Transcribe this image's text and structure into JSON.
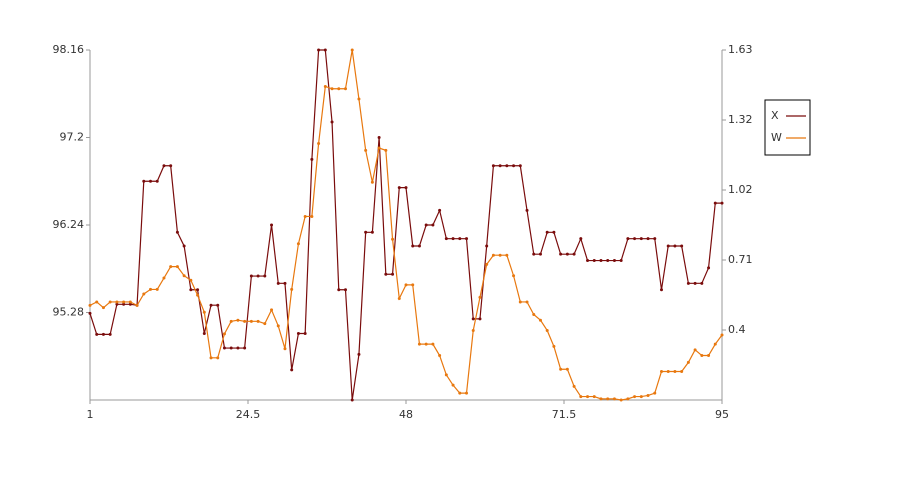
{
  "chart_data": {
    "type": "line",
    "x": [
      1,
      2,
      3,
      4,
      5,
      6,
      7,
      8,
      9,
      10,
      11,
      12,
      13,
      14,
      15,
      16,
      17,
      18,
      19,
      20,
      21,
      22,
      23,
      24,
      25,
      26,
      27,
      28,
      29,
      30,
      31,
      32,
      33,
      34,
      35,
      36,
      37,
      38,
      39,
      40,
      41,
      42,
      43,
      44,
      45,
      46,
      47,
      48,
      49,
      50,
      51,
      52,
      53,
      54,
      55,
      56,
      57,
      58,
      59,
      60,
      61,
      62,
      63,
      64,
      65,
      66,
      67,
      68,
      69,
      70,
      71,
      72,
      73,
      74,
      75,
      76,
      77,
      78,
      79,
      80,
      81,
      82,
      83,
      84,
      85,
      86,
      87,
      88,
      89,
      90,
      91,
      92,
      93,
      94,
      95
    ],
    "xlim": [
      1,
      95
    ],
    "xticks": [
      1,
      24.5,
      48,
      71.5,
      95
    ],
    "ylim": [
      94.32,
      98.16
    ],
    "yticks": [
      95.28,
      96.24,
      97.2,
      98.16
    ],
    "y2lim": [
      0.095,
      1.63
    ],
    "y2ticks": [
      {
        "value": 0.402,
        "label": "0.4"
      },
      {
        "value": 0.709,
        "label": "0.71"
      },
      {
        "value": 1.016,
        "label": "1.02"
      },
      {
        "value": 1.323,
        "label": "1.32"
      },
      1.63
    ],
    "legend": "right",
    "series": [
      {
        "name": "X",
        "color": "#7a0c0c",
        "values": [
          95.27,
          95.04,
          95.04,
          95.04,
          95.37,
          95.37,
          95.37,
          95.36,
          96.72,
          96.72,
          96.72,
          96.89,
          96.89,
          96.16,
          96.01,
          95.53,
          95.53,
          95.05,
          95.36,
          95.36,
          94.89,
          94.89,
          94.89,
          94.89,
          95.68,
          95.68,
          95.68,
          96.24,
          95.6,
          95.6,
          94.65,
          95.05,
          95.05,
          96.96,
          98.16,
          98.16,
          97.37,
          95.53,
          95.53,
          94.32,
          94.82,
          96.16,
          96.16,
          97.2,
          95.7,
          95.7,
          96.65,
          96.65,
          96.01,
          96.01,
          96.24,
          96.24,
          96.4,
          96.09,
          96.09,
          96.09,
          96.09,
          95.21,
          95.21,
          96.01,
          96.89,
          96.89,
          96.89,
          96.89,
          96.89,
          96.4,
          95.92,
          95.92,
          96.16,
          96.16,
          95.92,
          95.92,
          95.92,
          96.09,
          95.85,
          95.85,
          95.85,
          95.85,
          95.85,
          95.85,
          96.09,
          96.09,
          96.09,
          96.09,
          96.09,
          95.53,
          96.01,
          96.01,
          96.01,
          95.6,
          95.6,
          95.6,
          95.77,
          96.48,
          96.48
        ]
      },
      {
        "name": "W",
        "color": "#e8780f",
        "axis": "y2",
        "values": [
          0.51,
          0.525,
          0.5,
          0.525,
          0.525,
          0.525,
          0.525,
          0.51,
          0.56,
          0.58,
          0.58,
          0.63,
          0.68,
          0.68,
          0.64,
          0.62,
          0.555,
          0.48,
          0.28,
          0.28,
          0.385,
          0.44,
          0.445,
          0.44,
          0.44,
          0.44,
          0.43,
          0.49,
          0.42,
          0.32,
          0.58,
          0.78,
          0.9,
          0.9,
          1.22,
          1.47,
          1.46,
          1.46,
          1.46,
          1.63,
          1.415,
          1.19,
          1.05,
          1.2,
          1.19,
          0.8,
          0.54,
          0.6,
          0.6,
          0.34,
          0.34,
          0.34,
          0.29,
          0.205,
          0.16,
          0.125,
          0.125,
          0.4,
          0.545,
          0.69,
          0.73,
          0.73,
          0.73,
          0.64,
          0.525,
          0.525,
          0.47,
          0.445,
          0.4,
          0.33,
          0.23,
          0.23,
          0.155,
          0.11,
          0.11,
          0.11,
          0.1,
          0.1,
          0.1,
          0.095,
          0.1,
          0.11,
          0.11,
          0.115,
          0.125,
          0.22,
          0.22,
          0.22,
          0.22,
          0.26,
          0.315,
          0.29,
          0.29,
          0.34,
          0.38
        ]
      }
    ]
  }
}
